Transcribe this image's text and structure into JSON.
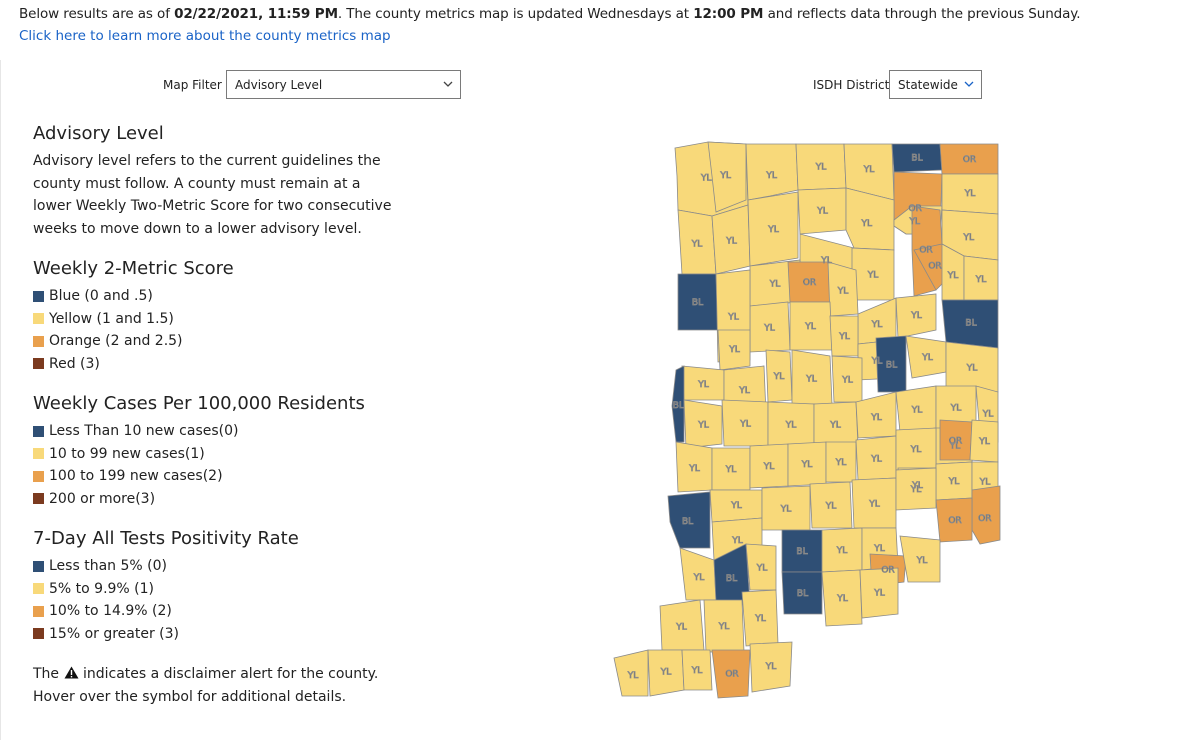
{
  "header": {
    "status_prefix": "Below results are as of ",
    "status_date": "02/22/2021, 11:59 PM",
    "status_mid": ". The county metrics map is updated Wednesdays at ",
    "status_time": "12:00 PM",
    "status_suffix": " and reflects data through the previous Sunday.",
    "learn_link": "Click here to learn more about the county metrics map"
  },
  "filters": {
    "map_filter_label": "Map Filter",
    "map_filter_value": "Advisory Level",
    "district_label": "ISDH District",
    "district_value": "Statewide"
  },
  "legend": {
    "advisory_title": "Advisory Level",
    "advisory_text": "Advisory level refers to the current guidelines the county must follow. A county must remain at a lower Weekly Two-Metric Score for two consecutive weeks to move down to a lower advisory level.",
    "score_title": "Weekly 2-Metric Score",
    "score_items": [
      "Blue (0 and .5)",
      "Yellow (1 and 1.5)",
      "Orange (2 and 2.5)",
      "Red (3)"
    ],
    "cases_title": "Weekly Cases Per 100,000 Residents",
    "cases_items": [
      "Less Than 10 new cases(0)",
      "10 to 99 new cases(1)",
      "100 to 199 new cases(2)",
      "200 or more(3)"
    ],
    "positivity_title": "7-Day All Tests Positivity Rate",
    "positivity_items": [
      "Less than 5% (0)",
      "5% to 9.9% (1)",
      "10% to 14.9% (2)",
      "15% or greater (3)"
    ],
    "disclaimer_pre": "The",
    "disclaimer_post": "indicates a disclaimer alert for the county.",
    "disclaimer_line2": "Hover over the symbol for additional details."
  },
  "colors": {
    "blue": "#2f4f75",
    "yellow": "#f8d97a",
    "orange": "#e9a04d",
    "red": "#7b3a1f",
    "link": "#1a63c7",
    "border": "#8a8a8a"
  },
  "map": {
    "codes": {
      "BL": "blue",
      "YL": "yellow",
      "OR": "orange"
    },
    "counties": [
      {
        "l": "YL"
      },
      {
        "l": "YL"
      },
      {
        "l": "YL"
      },
      {
        "l": "YL"
      },
      {
        "l": "YL"
      },
      {
        "l": "BL"
      },
      {
        "l": "OR"
      },
      {
        "l": "YL"
      },
      {
        "l": "YL"
      },
      {
        "l": "YL"
      },
      {
        "l": "OR"
      },
      {
        "l": "YL"
      },
      {
        "l": "YL"
      },
      {
        "l": "YL"
      },
      {
        "l": "YL"
      },
      {
        "l": "YL"
      },
      {
        "l": "OR"
      },
      {
        "l": "YL"
      },
      {
        "l": "YL"
      },
      {
        "l": "OR"
      },
      {
        "l": "YL"
      },
      {
        "l": "OR"
      },
      {
        "l": "YL"
      },
      {
        "l": "YL"
      },
      {
        "l": "YL"
      },
      {
        "l": "BL"
      },
      {
        "l": "YL"
      },
      {
        "l": "YL"
      },
      {
        "l": "YL"
      },
      {
        "l": "YL"
      },
      {
        "l": "BL"
      },
      {
        "l": "YL"
      },
      {
        "l": "YL"
      },
      {
        "l": "YL"
      },
      {
        "l": "YL"
      },
      {
        "l": "BL"
      },
      {
        "l": "YL"
      },
      {
        "l": "YL"
      },
      {
        "l": "YL"
      },
      {
        "l": "YL"
      },
      {
        "l": "YL"
      },
      {
        "l": "YL"
      },
      {
        "l": "YL"
      },
      {
        "l": "BL"
      },
      {
        "l": "YL"
      },
      {
        "l": "YL"
      },
      {
        "l": "YL"
      },
      {
        "l": "YL"
      },
      {
        "l": "YL"
      },
      {
        "l": "YL"
      },
      {
        "l": "YL"
      },
      {
        "l": "YL"
      },
      {
        "l": "YL"
      },
      {
        "l": "OR"
      },
      {
        "l": "YL"
      },
      {
        "l": "YL"
      },
      {
        "l": "YL"
      },
      {
        "l": "YL"
      },
      {
        "l": "YL"
      },
      {
        "l": "YL"
      },
      {
        "l": "YL"
      },
      {
        "l": "YL"
      },
      {
        "l": "YL"
      },
      {
        "l": "YL"
      },
      {
        "l": "YL"
      },
      {
        "l": "OR"
      },
      {
        "l": "BL"
      },
      {
        "l": "YL"
      },
      {
        "l": "YL"
      },
      {
        "l": "YL"
      },
      {
        "l": "YL"
      },
      {
        "l": "YL"
      },
      {
        "l": "YL"
      },
      {
        "l": "OR"
      },
      {
        "l": "YL"
      },
      {
        "l": "BL"
      },
      {
        "l": "YL"
      },
      {
        "l": "BL"
      },
      {
        "l": "YL"
      },
      {
        "l": "YL"
      },
      {
        "l": "OR"
      },
      {
        "l": "YL"
      },
      {
        "l": "YL"
      },
      {
        "l": "YL"
      },
      {
        "l": "YL"
      },
      {
        "l": "BL"
      },
      {
        "l": "YL"
      },
      {
        "l": "YL"
      },
      {
        "l": "YL"
      },
      {
        "l": "YL"
      },
      {
        "l": "YL"
      },
      {
        "l": "OR"
      },
      {
        "l": "YL"
      }
    ]
  }
}
